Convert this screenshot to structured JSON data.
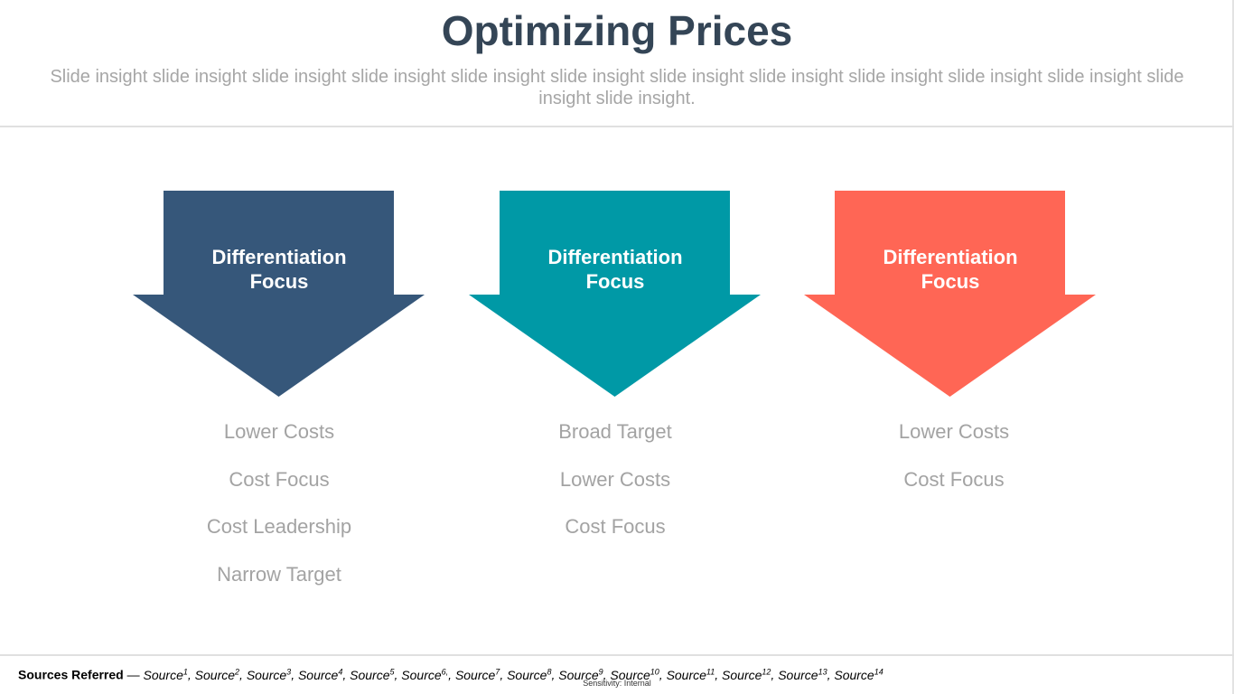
{
  "slide": {
    "title": "Optimizing Prices",
    "subtitle": "Slide insight slide insight slide insight slide insight slide insight slide insight slide insight slide insight slide insight slide insight slide insight slide insight slide insight."
  },
  "columns": [
    {
      "label_line1": "Differentiation",
      "label_line2": "Focus",
      "color": "#36577a",
      "items": [
        "Lower Costs",
        "Cost Focus",
        "Cost Leadership",
        "Narrow Target"
      ]
    },
    {
      "label_line1": "Differentiation",
      "label_line2": "Focus",
      "color": "#0099a6",
      "items": [
        "Broad Target",
        "Lower Costs",
        "Cost Focus"
      ]
    },
    {
      "label_line1": "Differentiation",
      "label_line2": "Focus",
      "color": "#ff6655",
      "items": [
        "Lower Costs",
        "Cost Focus"
      ]
    }
  ],
  "footer": {
    "lead": "Sources Referred",
    "dash": " — ",
    "sources": [
      {
        "text": "Source",
        "num": "1",
        "sep": ", "
      },
      {
        "text": "Source",
        "num": "2",
        "sep": ", "
      },
      {
        "text": "Source",
        "num": "3",
        "sep": ", "
      },
      {
        "text": "Source",
        "num": "4",
        "sep": ", "
      },
      {
        "text": "Source",
        "num": "5",
        "sep": ", "
      },
      {
        "text": "Source",
        "num": "6,",
        "sep": ", "
      },
      {
        "text": "Source",
        "num": "7",
        "sep": ", "
      },
      {
        "text": "Source",
        "num": "8",
        "sep": ", "
      },
      {
        "text": "Source",
        "num": "9",
        "sep": ", "
      },
      {
        "text": "Source",
        "num": "10",
        "sep": ", "
      },
      {
        "text": "Source",
        "num": "11",
        "sep": ", "
      },
      {
        "text": "Source",
        "num": "12",
        "sep": ", "
      },
      {
        "text": "Source",
        "num": "13",
        "sep": ", "
      },
      {
        "text": "Source",
        "num": "14",
        "sep": ""
      }
    ],
    "sensitivity": "Sensitivity: Internal"
  }
}
